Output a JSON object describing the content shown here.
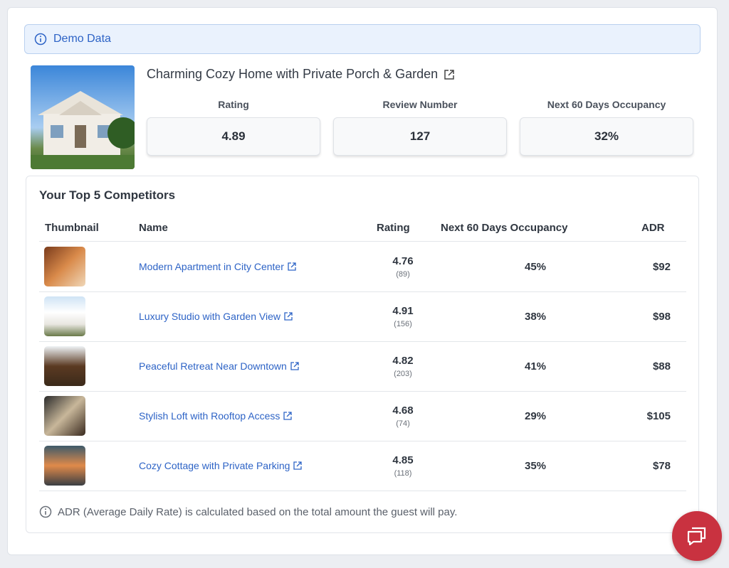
{
  "banner": "Demo Data",
  "property": {
    "title": "Charming Cozy Home with Private Porch & Garden",
    "stats": [
      {
        "label": "Rating",
        "value": "4.89"
      },
      {
        "label": "Review Number",
        "value": "127"
      },
      {
        "label": "Next 60 Days Occupancy",
        "value": "32%"
      }
    ]
  },
  "competitors": {
    "heading": "Your Top 5 Competitors",
    "columns": [
      "Thumbnail",
      "Name",
      "Rating",
      "Next 60 Days Occupancy",
      "ADR"
    ],
    "rows": [
      {
        "name": "Modern Apartment in City Center",
        "rating": "4.76",
        "reviews": "(89)",
        "occupancy": "45%",
        "adr": "$92"
      },
      {
        "name": "Luxury Studio with Garden View",
        "rating": "4.91",
        "reviews": "(156)",
        "occupancy": "38%",
        "adr": "$98"
      },
      {
        "name": "Peaceful Retreat Near Downtown",
        "rating": "4.82",
        "reviews": "(203)",
        "occupancy": "41%",
        "adr": "$88"
      },
      {
        "name": "Stylish Loft with Rooftop Access",
        "rating": "4.68",
        "reviews": "(74)",
        "occupancy": "29%",
        "adr": "$105"
      },
      {
        "name": "Cozy Cottage with Private Parking",
        "rating": "4.85",
        "reviews": "(118)",
        "occupancy": "35%",
        "adr": "$78"
      }
    ]
  },
  "footnote": "ADR (Average Daily Rate) is calculated based on the total amount the guest will pay."
}
